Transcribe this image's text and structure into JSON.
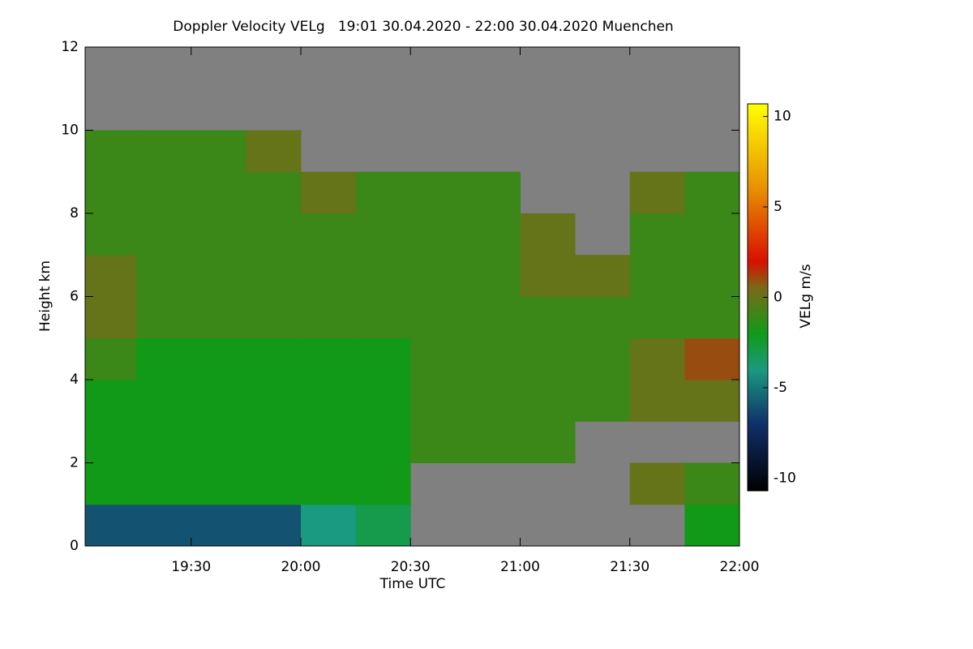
{
  "chart_data": {
    "type": "heatmap",
    "title": "Doppler Velocity VELg   19:01 30.04.2020 - 22:00 30.04.2020 Muenchen",
    "x_label": "Time UTC",
    "y_label": "Height km",
    "colorbar_label": "VELg m/s",
    "xlim": [
      19.0167,
      22.0
    ],
    "xticks": [
      {
        "value": 19.5,
        "label": "19:30"
      },
      {
        "value": 20.0,
        "label": "20:00"
      },
      {
        "value": 20.5,
        "label": "20:30"
      },
      {
        "value": 21.0,
        "label": "21:00"
      },
      {
        "value": 21.5,
        "label": "21:30"
      },
      {
        "value": 22.0,
        "label": "22:00"
      }
    ],
    "ylim": [
      0,
      12
    ],
    "yticks": [
      0,
      2,
      4,
      6,
      8,
      10,
      12
    ],
    "clim": [
      -10.7,
      10.7
    ],
    "cticks": [
      -10,
      -5,
      0,
      5,
      10
    ],
    "missing_color": "#808080",
    "colorscale": [
      [
        -10.7,
        "#000000"
      ],
      [
        -7,
        "#10306a"
      ],
      [
        -4,
        "#1a9a80"
      ],
      [
        -2,
        "#119a18"
      ],
      [
        0.5,
        "#7a6a18"
      ],
      [
        2,
        "#d81000"
      ],
      [
        6,
        "#e89000"
      ],
      [
        10.7,
        "#ffff00"
      ]
    ],
    "x_edges": [
      19.0167,
      19.25,
      19.5,
      19.75,
      20.0,
      20.25,
      20.5,
      20.75,
      21.0,
      21.25,
      21.5,
      21.75,
      22.0
    ],
    "y_edges": [
      0,
      1,
      2,
      3,
      4,
      5,
      6,
      7,
      8,
      9,
      10,
      11,
      12
    ],
    "z": [
      [
        -6,
        -6,
        -6,
        -6,
        -4,
        -3,
        null,
        null,
        null,
        null,
        null,
        -2
      ],
      [
        -2,
        -2,
        -2,
        -2,
        -2,
        -2,
        null,
        null,
        null,
        null,
        0,
        -1
      ],
      [
        -2,
        -2,
        -2,
        -2,
        -2,
        -2,
        -1,
        -1,
        -1,
        null,
        null,
        null
      ],
      [
        -2,
        -2,
        -2,
        -2,
        -2,
        -2,
        -1,
        -1,
        -1,
        -1,
        0,
        0
      ],
      [
        -1,
        -2,
        -2,
        -2,
        -2,
        -2,
        -1,
        -1,
        -1,
        -1,
        0,
        1
      ],
      [
        0,
        -1,
        -1,
        -1,
        -1,
        -1,
        -1,
        -1,
        -1,
        -1,
        -1,
        -1
      ],
      [
        0,
        -1,
        -1,
        -1,
        -1,
        -1,
        -1,
        -1,
        0,
        0,
        -1,
        -1
      ],
      [
        -1,
        -1,
        -1,
        -1,
        -1,
        -1,
        -1,
        -1,
        0,
        null,
        -1,
        -1
      ],
      [
        -1,
        -1,
        -1,
        -1,
        0,
        -1,
        -1,
        -1,
        null,
        null,
        0,
        -1
      ],
      [
        -1,
        -1,
        -1,
        0,
        null,
        null,
        null,
        null,
        null,
        null,
        null,
        null
      ],
      [
        null,
        null,
        null,
        null,
        null,
        null,
        null,
        null,
        null,
        null,
        null,
        null
      ],
      [
        null,
        null,
        null,
        null,
        null,
        null,
        null,
        null,
        null,
        null,
        null,
        null
      ]
    ]
  }
}
